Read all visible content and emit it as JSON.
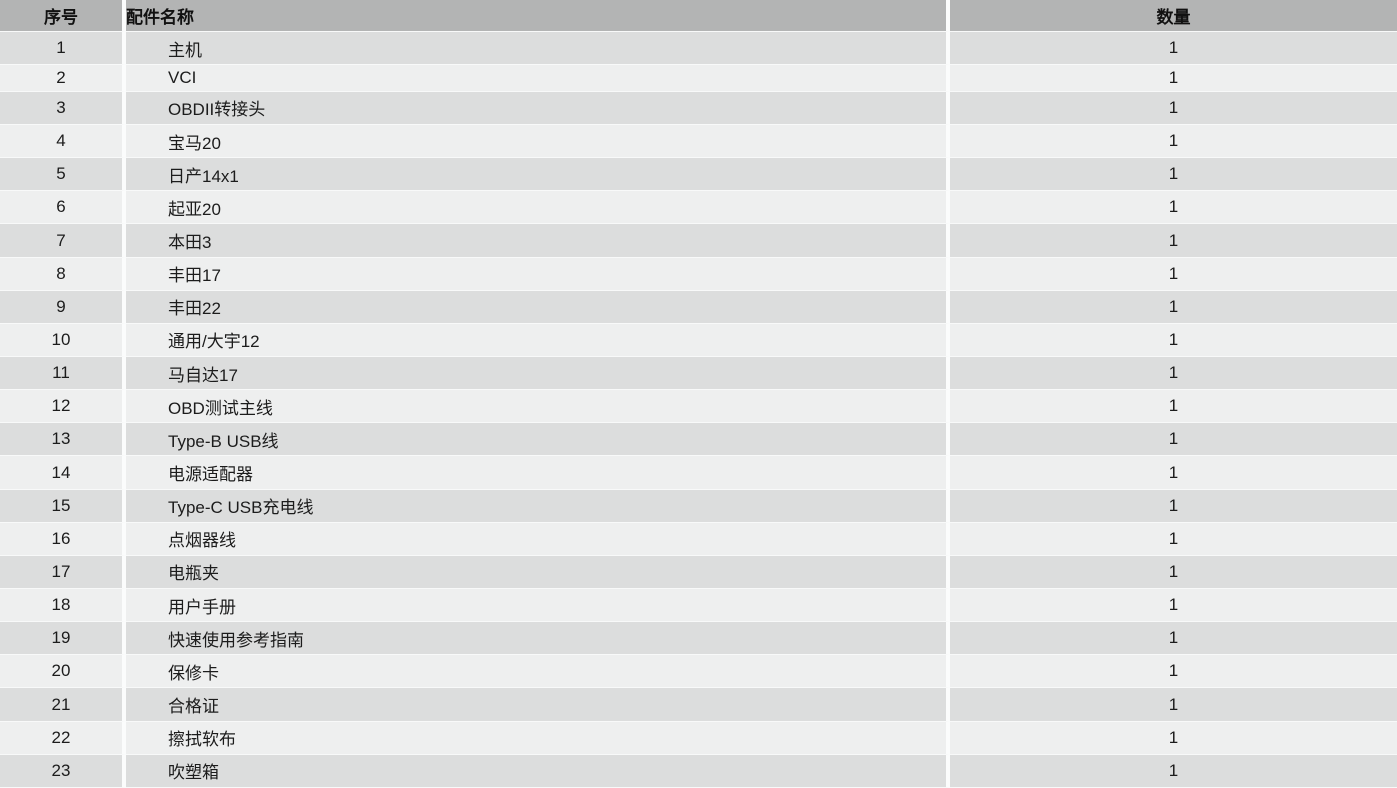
{
  "colors": {
    "header_bg": "#b3b4b4",
    "row_odd_bg": "#dcdddd",
    "row_even_bg": "#eeefef",
    "separator": "#fbfcfc",
    "text": "#1c1c1c"
  },
  "table": {
    "columns": [
      {
        "key": "index",
        "label": "序号"
      },
      {
        "key": "name",
        "label": "配件名称"
      },
      {
        "key": "qty",
        "label": "数量"
      }
    ],
    "rows": [
      {
        "index": "1",
        "name": "主机",
        "qty": "1"
      },
      {
        "index": "2",
        "name": "VCI",
        "qty": "1"
      },
      {
        "index": "3",
        "name": "OBDII转接头",
        "qty": "1"
      },
      {
        "index": "4",
        "name": "宝马20",
        "qty": "1"
      },
      {
        "index": "5",
        "name": "日产14x1",
        "qty": "1"
      },
      {
        "index": "6",
        "name": "起亚20",
        "qty": "1"
      },
      {
        "index": "7",
        "name": "本田3",
        "qty": "1"
      },
      {
        "index": "8",
        "name": "丰田17",
        "qty": "1"
      },
      {
        "index": "9",
        "name": "丰田22",
        "qty": "1"
      },
      {
        "index": "10",
        "name": "通用/大宇12",
        "qty": "1"
      },
      {
        "index": "11",
        "name": "马自达17",
        "qty": "1"
      },
      {
        "index": "12",
        "name": "OBD测试主线",
        "qty": "1"
      },
      {
        "index": "13",
        "name": "Type-B USB线",
        "qty": "1"
      },
      {
        "index": "14",
        "name": "电源适配器",
        "qty": "1"
      },
      {
        "index": "15",
        "name": "Type-C USB充电线",
        "qty": "1"
      },
      {
        "index": "16",
        "name": "点烟器线",
        "qty": "1"
      },
      {
        "index": "17",
        "name": "电瓶夹",
        "qty": "1"
      },
      {
        "index": "18",
        "name": "用户手册",
        "qty": "1"
      },
      {
        "index": "19",
        "name": "快速使用参考指南",
        "qty": "1"
      },
      {
        "index": "20",
        "name": "保修卡",
        "qty": "1"
      },
      {
        "index": "21",
        "name": "合格证",
        "qty": "1"
      },
      {
        "index": "22",
        "name": "擦拭软布",
        "qty": "1"
      },
      {
        "index": "23",
        "name": "吹塑箱",
        "qty": "1"
      }
    ]
  }
}
